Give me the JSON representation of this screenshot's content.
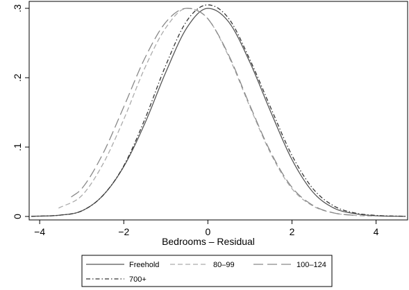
{
  "chart_data": {
    "type": "line",
    "xlabel": "Bedrooms – Residual",
    "ylabel": "",
    "xlim": [
      -4.25,
      4.75
    ],
    "ylim": [
      -0.005,
      0.31
    ],
    "x_ticks": [
      -4,
      -2,
      0,
      2,
      4
    ],
    "x_tick_labels": [
      "−4",
      "−2",
      "0",
      "2",
      "4"
    ],
    "y_ticks": [
      0,
      0.1,
      0.2,
      0.3
    ],
    "y_tick_labels": [
      "0",
      ".1",
      ".2",
      ".3"
    ],
    "grid": false,
    "legend_position": "bottom",
    "series": [
      {
        "name": "Freehold",
        "style": "solid",
        "color": "#555555",
        "x": [
          -4.2,
          -3.5,
          -3.0,
          -2.5,
          -2.0,
          -1.5,
          -1.0,
          -0.5,
          0.0,
          0.5,
          1.0,
          1.5,
          2.0,
          2.5,
          3.0,
          3.5,
          4.0,
          4.7
        ],
        "y": [
          0.0002,
          0.002,
          0.008,
          0.03,
          0.072,
          0.134,
          0.208,
          0.272,
          0.3,
          0.28,
          0.222,
          0.15,
          0.082,
          0.035,
          0.012,
          0.004,
          0.001,
          0.0002
        ]
      },
      {
        "name": "80–99",
        "style": "short-dash",
        "color": "#aaaaaa",
        "x": [
          -3.55,
          -3.0,
          -2.5,
          -2.0,
          -1.5,
          -1.0,
          -0.5,
          0.0,
          0.5,
          1.0,
          1.5,
          2.0,
          2.5,
          3.0,
          3.5,
          4.0
        ],
        "y": [
          0.012,
          0.03,
          0.075,
          0.14,
          0.214,
          0.272,
          0.3,
          0.285,
          0.23,
          0.158,
          0.09,
          0.04,
          0.015,
          0.005,
          0.0015,
          0.0003
        ]
      },
      {
        "name": "100–124",
        "style": "long-dash",
        "color": "#888888",
        "x": [
          -3.25,
          -3.0,
          -2.5,
          -2.0,
          -1.5,
          -1.0,
          -0.5,
          -0.3,
          0.0,
          0.5,
          1.0,
          1.5,
          2.0,
          2.5,
          3.0,
          3.5
        ],
        "y": [
          0.028,
          0.04,
          0.09,
          0.158,
          0.228,
          0.28,
          0.3,
          0.298,
          0.285,
          0.232,
          0.16,
          0.092,
          0.042,
          0.016,
          0.005,
          0.0015
        ]
      },
      {
        "name": "700+",
        "style": "dash-dot",
        "color": "#333333",
        "x": [
          -4.2,
          -3.5,
          -3.0,
          -2.5,
          -2.0,
          -1.5,
          -1.0,
          -0.5,
          0.0,
          0.5,
          1.0,
          1.5,
          2.0,
          2.5,
          3.0,
          3.5,
          4.0,
          4.7
        ],
        "y": [
          0.0002,
          0.002,
          0.008,
          0.03,
          0.073,
          0.14,
          0.218,
          0.282,
          0.305,
          0.285,
          0.226,
          0.156,
          0.088,
          0.04,
          0.015,
          0.005,
          0.0015,
          0.0003
        ]
      }
    ]
  }
}
